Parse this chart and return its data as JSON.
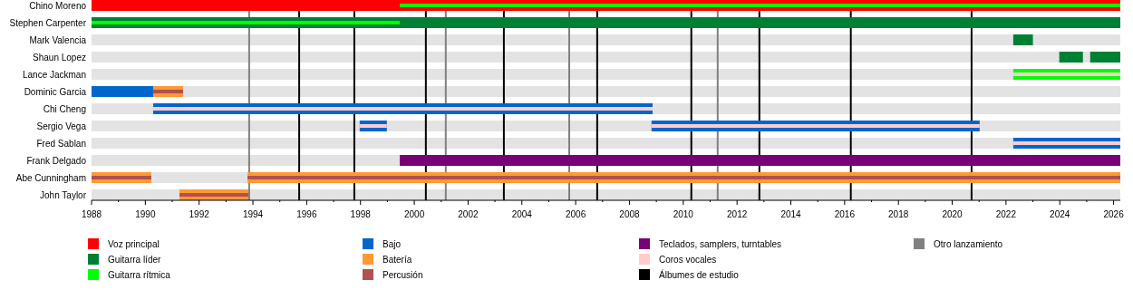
{
  "chart_data": {
    "type": "bar",
    "orientation": "horizontal",
    "legend": "bottom",
    "categories": [
      "Chino Moreno",
      "Stephen Carpenter",
      "Mark Valencia",
      "Shaun Lopez",
      "Lance Jackman",
      "Dominic Garcia",
      "Chi Cheng",
      "Sergio Vega",
      "Fred Sablan",
      "Frank Delgado",
      "Abe Cunningham",
      "John Taylor"
    ],
    "xlim": [
      1988,
      2026.25
    ],
    "xticks": [
      1988,
      {
        "value": 1989,
        "label": null
      },
      1990,
      {
        "value": 1991,
        "label": null
      },
      1992,
      {
        "value": 1993,
        "label": null
      },
      1994,
      {
        "value": 1995,
        "label": null
      },
      1996,
      {
        "value": 1997,
        "label": null
      },
      1998,
      {
        "value": 1999,
        "label": null
      },
      2000,
      {
        "value": 2001,
        "label": null
      },
      2002,
      {
        "value": 2003,
        "label": null
      },
      2004,
      {
        "value": 2005,
        "label": null
      },
      2006,
      {
        "value": 2007,
        "label": null
      },
      2008,
      {
        "value": 2009,
        "label": null
      },
      2010,
      {
        "value": 2011,
        "label": null
      },
      2012,
      {
        "value": 2013,
        "label": null
      },
      2014,
      {
        "value": 2015,
        "label": null
      },
      2016,
      {
        "value": 2017,
        "label": null
      },
      2018,
      {
        "value": 2019,
        "label": null
      },
      2020,
      {
        "value": 2021,
        "label": null
      },
      2022,
      {
        "value": 2023,
        "label": null
      },
      2024,
      {
        "value": 2025,
        "label": null
      },
      2026
    ],
    "series": [
      {
        "name": "Voz principal",
        "color": "#ff0000",
        "base": [
          1988,
          null,
          null,
          null,
          null,
          null,
          null,
          null,
          null,
          null,
          null,
          null
        ],
        "values": [
          38.25,
          null,
          null,
          null,
          null,
          null,
          null,
          null,
          null,
          null,
          null,
          null
        ]
      },
      {
        "name": "Guitarra líder",
        "color": "#008033",
        "base": [
          null,
          1988,
          2022.27,
          2023.98,
          null,
          null,
          null,
          null,
          null,
          null,
          null,
          null
        ],
        "values": [
          null,
          38.25,
          0.73,
          0.88,
          null,
          null,
          null,
          null,
          null,
          null,
          null,
          null
        ]
      },
      {
        "color": "#008033",
        "base": [
          null,
          null,
          null,
          2025.13,
          null,
          null,
          null,
          null,
          null,
          null,
          null,
          null
        ],
        "values": [
          null,
          null,
          null,
          1.12,
          null,
          null,
          null,
          null,
          null,
          null,
          null,
          null
        ]
      },
      {
        "name": "Guitarra rítmica",
        "color": "#00ff00",
        "base": [
          1999.46,
          1988,
          null,
          null,
          2022.27,
          null,
          null,
          null,
          null,
          null,
          null,
          null
        ],
        "values": [
          26.79,
          11.46,
          null,
          null,
          3.98,
          null,
          null,
          null,
          null,
          null,
          null,
          null
        ]
      },
      {
        "name": "Bajo",
        "color": "#0066cc",
        "base": [
          null,
          null,
          null,
          null,
          null,
          1988,
          1990.29,
          1997.97,
          2022.27,
          null,
          null,
          null
        ],
        "values": [
          null,
          null,
          null,
          null,
          null,
          2.29,
          18.57,
          1.01,
          3.98,
          null,
          null,
          null
        ]
      },
      {
        "color": "#0066cc",
        "base": [
          null,
          null,
          null,
          null,
          null,
          null,
          null,
          2008.82,
          null,
          null,
          null,
          null
        ],
        "values": [
          null,
          null,
          null,
          null,
          null,
          null,
          null,
          12.2,
          null,
          null,
          null,
          null
        ]
      },
      {
        "name": "Batería",
        "color": "#ff9933",
        "base": [
          null,
          null,
          null,
          null,
          null,
          1990.29,
          null,
          null,
          null,
          null,
          1988,
          1991.27
        ],
        "values": [
          null,
          null,
          null,
          null,
          null,
          1.11,
          null,
          null,
          null,
          null,
          2.22,
          2.56
        ]
      },
      {
        "color": "#ff9933",
        "base": [
          null,
          null,
          null,
          null,
          null,
          null,
          null,
          null,
          null,
          null,
          1993.8,
          null
        ],
        "values": [
          null,
          null,
          null,
          null,
          null,
          null,
          null,
          null,
          null,
          null,
          32.45,
          null
        ]
      },
      {
        "name": "Percusión",
        "color": "#b05050",
        "base": [
          null,
          null,
          null,
          null,
          null,
          1990.29,
          null,
          null,
          null,
          null,
          1988,
          1991.27
        ],
        "values": [
          null,
          null,
          null,
          null,
          null,
          1.11,
          null,
          null,
          null,
          null,
          2.22,
          2.56
        ]
      },
      {
        "color": "#b05050",
        "base": [
          null,
          null,
          null,
          null,
          null,
          null,
          null,
          null,
          null,
          null,
          1993.8,
          null
        ],
        "values": [
          null,
          null,
          null,
          null,
          null,
          null,
          null,
          null,
          null,
          null,
          32.45,
          null
        ]
      },
      {
        "name": "Teclados, samplers, turntables",
        "color": "#770077",
        "base": [
          null,
          null,
          null,
          null,
          null,
          null,
          null,
          null,
          null,
          1999.46,
          null,
          null
        ],
        "values": [
          null,
          null,
          null,
          null,
          null,
          null,
          null,
          null,
          null,
          26.79,
          null,
          null
        ]
      },
      {
        "name": "Coros vocales",
        "color": "#ffcccc",
        "base": [
          null,
          null,
          null,
          null,
          2022.27,
          null,
          1990.29,
          1997.97,
          2022.27,
          null,
          null,
          null
        ],
        "values": [
          null,
          null,
          null,
          null,
          3.98,
          null,
          18.57,
          1.01,
          3.98,
          null,
          null,
          null
        ]
      },
      {
        "color": "#ffcccc",
        "base": [
          null,
          null,
          null,
          null,
          null,
          null,
          null,
          2008.82,
          null,
          null,
          null,
          null
        ],
        "values": [
          null,
          null,
          null,
          null,
          null,
          null,
          null,
          12.2,
          null,
          null,
          null,
          null
        ]
      }
    ],
    "ref_lines": [
      {
        "axis": "x",
        "value": 1995.72,
        "label": "Álbumes de estudio",
        "color": "#000000"
      },
      {
        "axis": "x",
        "value": 1997.77,
        "color": "#000000"
      },
      {
        "axis": "x",
        "value": 2000.43,
        "color": "#000000"
      },
      {
        "axis": "x",
        "value": 2003.33,
        "color": "#000000"
      },
      {
        "axis": "x",
        "value": 2006.8,
        "color": "#000000"
      },
      {
        "axis": "x",
        "value": 2010.3,
        "color": "#000000"
      },
      {
        "axis": "x",
        "value": 2012.83,
        "color": "#000000"
      },
      {
        "axis": "x",
        "value": 2016.23,
        "color": "#000000"
      },
      {
        "axis": "x",
        "value": 2020.72,
        "color": "#000000"
      },
      {
        "axis": "x",
        "value": 1993.86,
        "label": "Otro lanzamiento",
        "color": "#808080"
      },
      {
        "axis": "x",
        "value": 2001.17,
        "color": "#808080"
      },
      {
        "axis": "x",
        "value": 2005.76,
        "color": "#808080"
      },
      {
        "axis": "x",
        "value": 2011.28,
        "color": "#808080"
      }
    ]
  }
}
